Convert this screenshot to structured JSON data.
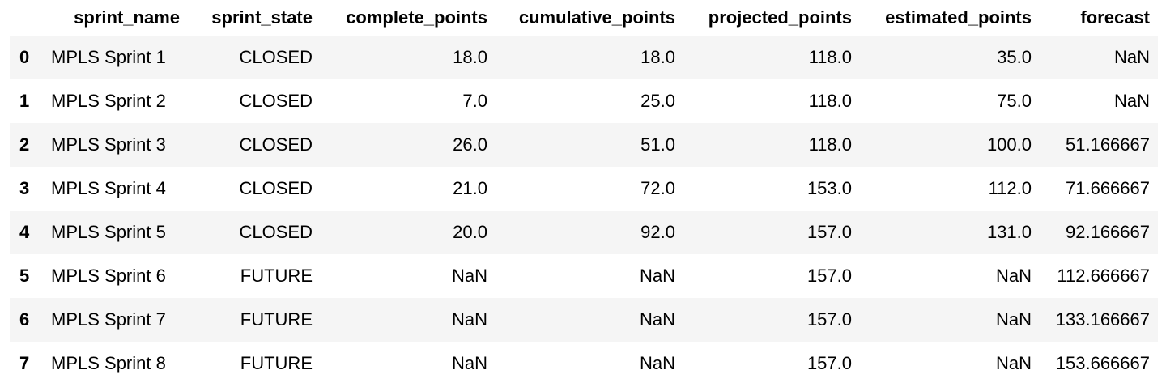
{
  "table": {
    "columns": [
      "",
      "sprint_name",
      "sprint_state",
      "complete_points",
      "cumulative_points",
      "projected_points",
      "estimated_points",
      "forecast"
    ],
    "rows": [
      {
        "index": "0",
        "sprint_name": "MPLS Sprint 1",
        "sprint_state": "CLOSED",
        "complete_points": "18.0",
        "cumulative_points": "18.0",
        "projected_points": "118.0",
        "estimated_points": "35.0",
        "forecast": "NaN"
      },
      {
        "index": "1",
        "sprint_name": "MPLS Sprint 2",
        "sprint_state": "CLOSED",
        "complete_points": "7.0",
        "cumulative_points": "25.0",
        "projected_points": "118.0",
        "estimated_points": "75.0",
        "forecast": "NaN"
      },
      {
        "index": "2",
        "sprint_name": "MPLS Sprint 3",
        "sprint_state": "CLOSED",
        "complete_points": "26.0",
        "cumulative_points": "51.0",
        "projected_points": "118.0",
        "estimated_points": "100.0",
        "forecast": "51.166667"
      },
      {
        "index": "3",
        "sprint_name": "MPLS Sprint 4",
        "sprint_state": "CLOSED",
        "complete_points": "21.0",
        "cumulative_points": "72.0",
        "projected_points": "153.0",
        "estimated_points": "112.0",
        "forecast": "71.666667"
      },
      {
        "index": "4",
        "sprint_name": "MPLS Sprint 5",
        "sprint_state": "CLOSED",
        "complete_points": "20.0",
        "cumulative_points": "92.0",
        "projected_points": "157.0",
        "estimated_points": "131.0",
        "forecast": "92.166667"
      },
      {
        "index": "5",
        "sprint_name": "MPLS Sprint 6",
        "sprint_state": "FUTURE",
        "complete_points": "NaN",
        "cumulative_points": "NaN",
        "projected_points": "157.0",
        "estimated_points": "NaN",
        "forecast": "112.666667"
      },
      {
        "index": "6",
        "sprint_name": "MPLS Sprint 7",
        "sprint_state": "FUTURE",
        "complete_points": "NaN",
        "cumulative_points": "NaN",
        "projected_points": "157.0",
        "estimated_points": "NaN",
        "forecast": "133.166667"
      },
      {
        "index": "7",
        "sprint_name": "MPLS Sprint 8",
        "sprint_state": "FUTURE",
        "complete_points": "NaN",
        "cumulative_points": "NaN",
        "projected_points": "157.0",
        "estimated_points": "NaN",
        "forecast": "153.666667"
      }
    ]
  },
  "colors": {
    "odd_row": "#f5f5f5",
    "even_row": "#ffffff",
    "text": "#000000"
  }
}
